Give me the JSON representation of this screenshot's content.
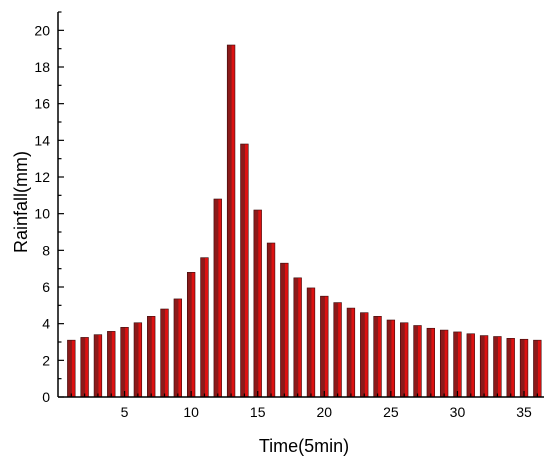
{
  "chart_data": {
    "type": "bar",
    "xlabel": "Time(5min)",
    "ylabel": "Rainfall(mm)",
    "xlim": [
      0,
      36.5
    ],
    "ylim": [
      0,
      21
    ],
    "xticks": [
      5,
      10,
      15,
      20,
      25,
      30,
      35
    ],
    "yticks": [
      0,
      2,
      4,
      6,
      8,
      10,
      12,
      14,
      16,
      18,
      20
    ],
    "grid": false,
    "legend": "none",
    "x": [
      1,
      2,
      3,
      4,
      5,
      6,
      7,
      8,
      9,
      10,
      11,
      12,
      13,
      14,
      15,
      16,
      17,
      18,
      19,
      20,
      21,
      22,
      23,
      24,
      25,
      26,
      27,
      28,
      29,
      30,
      31,
      32,
      33,
      34,
      35,
      36
    ],
    "series": [
      {
        "values": [
          3.1,
          3.25,
          3.4,
          3.58,
          3.8,
          4.05,
          4.4,
          4.8,
          5.35,
          6.8,
          7.6,
          10.8,
          19.2,
          13.8,
          10.2,
          8.4,
          7.3,
          6.5,
          5.95,
          5.5,
          5.15,
          4.85,
          4.6,
          4.4,
          4.2,
          4.05,
          3.9,
          3.75,
          3.65,
          3.55,
          3.45,
          3.35,
          3.3,
          3.2,
          3.15,
          3.1
        ],
        "colors": [
          "#8b1a1a",
          "#dd1111"
        ]
      }
    ]
  }
}
